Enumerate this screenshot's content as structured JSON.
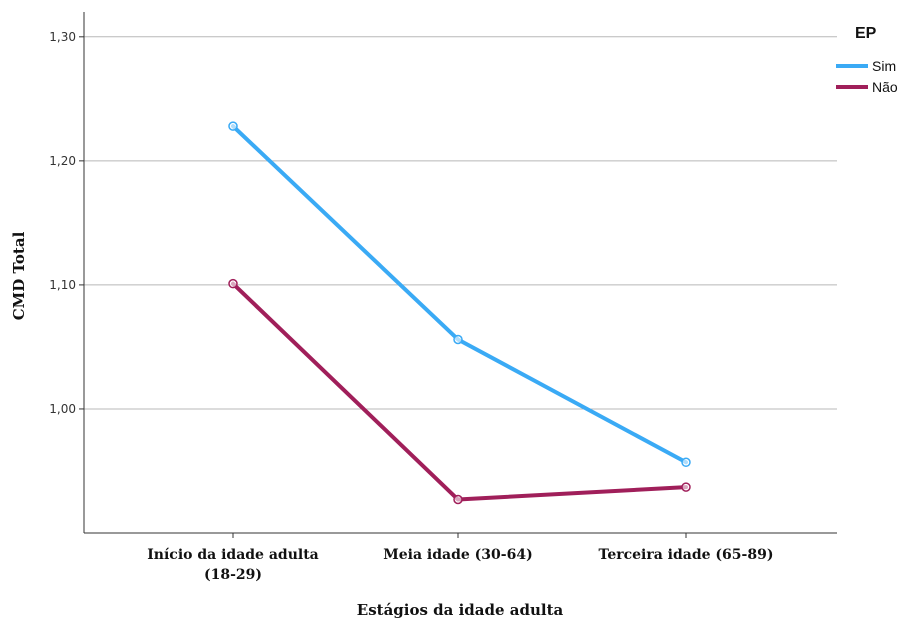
{
  "chart_data": {
    "type": "line",
    "xlabel": "Estágios da idade adulta",
    "ylabel": "CMD Total",
    "categories": [
      [
        "Início da idade adulta",
        "(18-29)"
      ],
      [
        "Meia idade (30-64)"
      ],
      [
        "Terceira idade (65-89)"
      ]
    ],
    "ylim": [
      0.9,
      1.32
    ],
    "yticks": [
      1.0,
      1.1,
      1.2,
      1.3
    ],
    "ytick_labels": [
      "1,00",
      "1,10",
      "1,20",
      "1,30"
    ],
    "grid": true,
    "legend": {
      "title": "EP",
      "placement": "top-right"
    },
    "series": [
      {
        "name": "Sim",
        "color": "#3aaaf5",
        "values": [
          1.228,
          1.056,
          0.957
        ]
      },
      {
        "name": "Não",
        "color": "#a01f5a",
        "values": [
          1.101,
          0.927,
          0.937
        ]
      }
    ]
  }
}
